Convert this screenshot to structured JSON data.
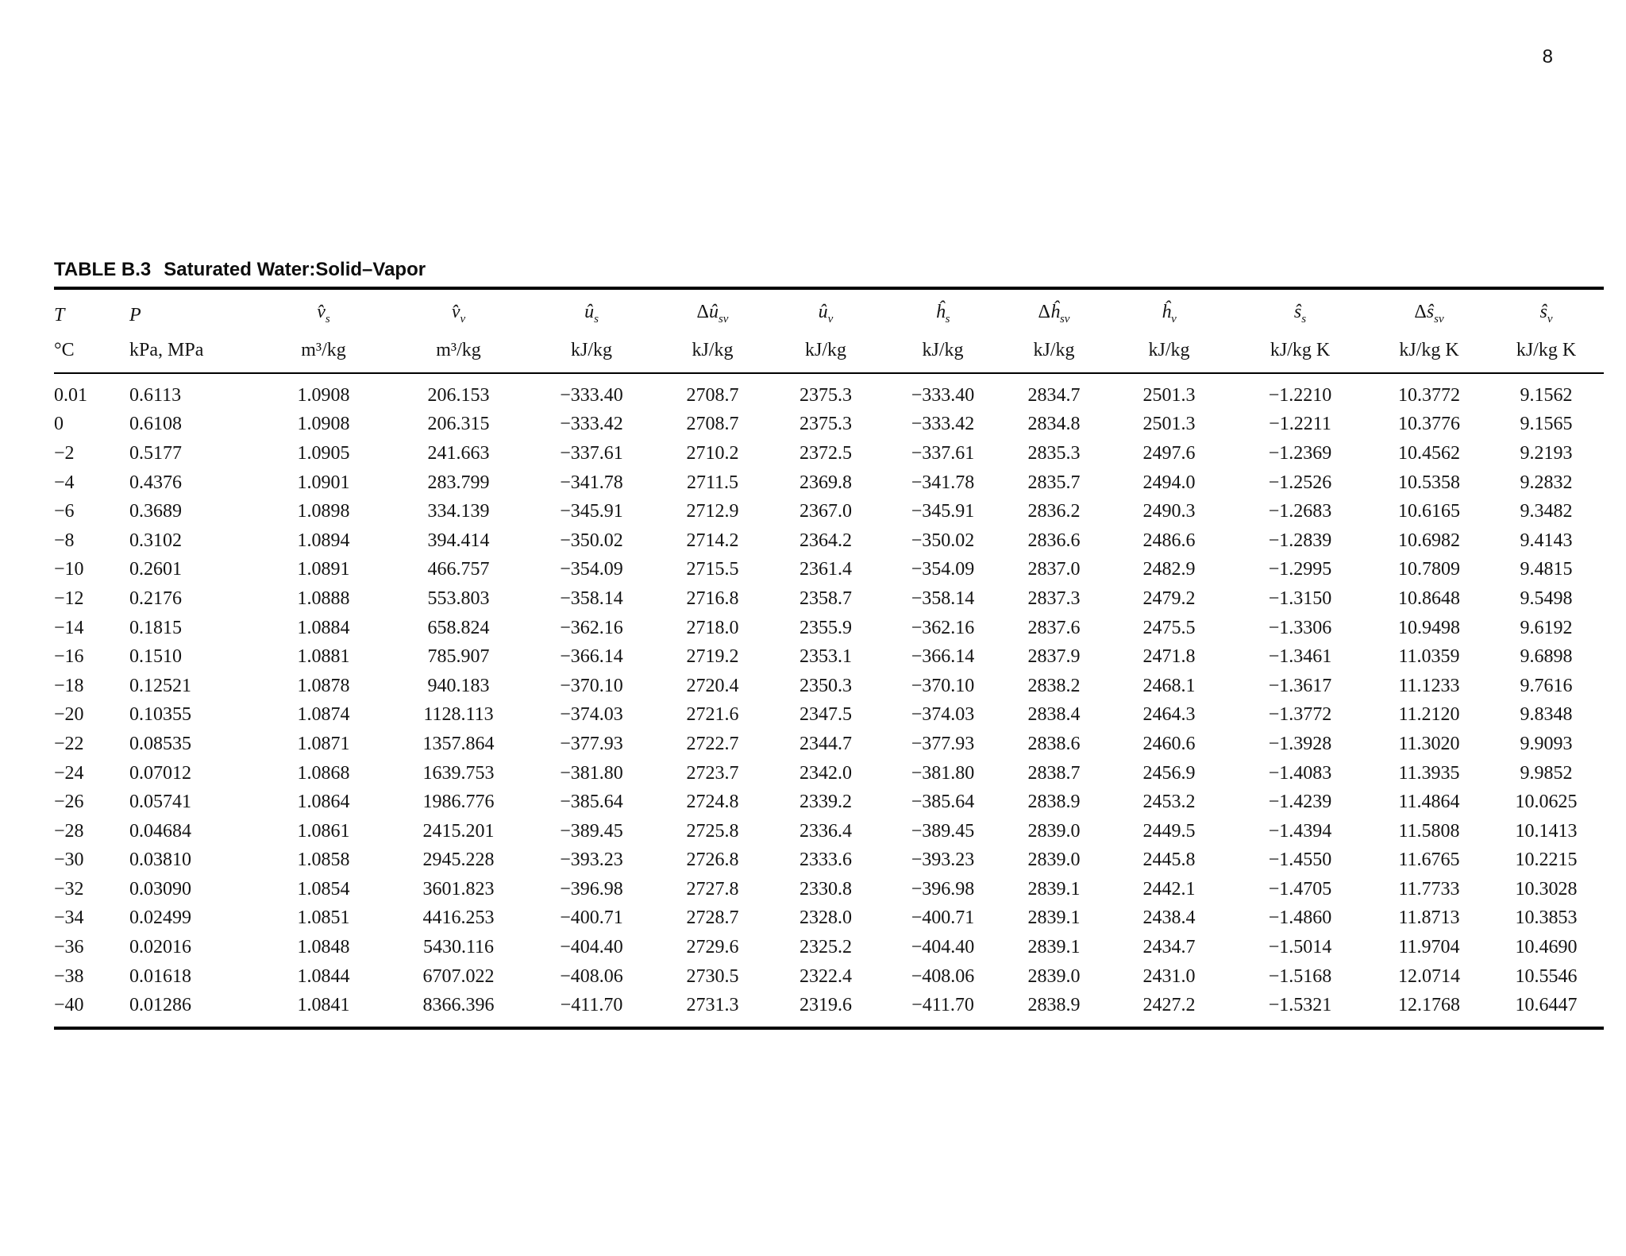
{
  "page": {
    "number": "8"
  },
  "table": {
    "title_label": "TABLE B.3",
    "title_text": "Saturated Water:Solid–Vapor",
    "columns": [
      {
        "id": "T",
        "sym": "T",
        "sub": "",
        "prefix": "",
        "unit": "°C"
      },
      {
        "id": "P",
        "sym": "P",
        "sub": "",
        "prefix": "",
        "unit": "kPa, MPa"
      },
      {
        "id": "vs",
        "sym": "v̂",
        "sub": "s",
        "prefix": "",
        "unit": "m³/kg"
      },
      {
        "id": "vv",
        "sym": "v̂",
        "sub": "v",
        "prefix": "",
        "unit": "m³/kg"
      },
      {
        "id": "us",
        "sym": "û",
        "sub": "s",
        "prefix": "",
        "unit": "kJ/kg"
      },
      {
        "id": "dusv",
        "sym": "û",
        "sub": "sv",
        "prefix": "Δ",
        "unit": "kJ/kg"
      },
      {
        "id": "uv",
        "sym": "û",
        "sub": "v",
        "prefix": "",
        "unit": "kJ/kg"
      },
      {
        "id": "hs",
        "sym": "ĥ",
        "sub": "s",
        "prefix": "",
        "unit": "kJ/kg"
      },
      {
        "id": "dhsv",
        "sym": "ĥ",
        "sub": "sv",
        "prefix": "Δ",
        "unit": "kJ/kg"
      },
      {
        "id": "hv",
        "sym": "ĥ",
        "sub": "v",
        "prefix": "",
        "unit": "kJ/kg"
      },
      {
        "id": "ss",
        "sym": "ŝ",
        "sub": "s",
        "prefix": "",
        "unit": "kJ/kg K"
      },
      {
        "id": "dssv",
        "sym": "ŝ",
        "sub": "sv",
        "prefix": "Δ",
        "unit": "kJ/kg K"
      },
      {
        "id": "sv",
        "sym": "ŝ",
        "sub": "v",
        "prefix": "",
        "unit": "kJ/kg K"
      }
    ],
    "rows": [
      [
        "0.01",
        "0.6113",
        "1.0908",
        "206.153",
        "−333.40",
        "2708.7",
        "2375.3",
        "−333.40",
        "2834.7",
        "2501.3",
        "−1.2210",
        "10.3772",
        "9.1562"
      ],
      [
        "0",
        "0.6108",
        "1.0908",
        "206.315",
        "−333.42",
        "2708.7",
        "2375.3",
        "−333.42",
        "2834.8",
        "2501.3",
        "−1.2211",
        "10.3776",
        "9.1565"
      ],
      [
        "−2",
        "0.5177",
        "1.0905",
        "241.663",
        "−337.61",
        "2710.2",
        "2372.5",
        "−337.61",
        "2835.3",
        "2497.6",
        "−1.2369",
        "10.4562",
        "9.2193"
      ],
      [
        "−4",
        "0.4376",
        "1.0901",
        "283.799",
        "−341.78",
        "2711.5",
        "2369.8",
        "−341.78",
        "2835.7",
        "2494.0",
        "−1.2526",
        "10.5358",
        "9.2832"
      ],
      [
        "−6",
        "0.3689",
        "1.0898",
        "334.139",
        "−345.91",
        "2712.9",
        "2367.0",
        "−345.91",
        "2836.2",
        "2490.3",
        "−1.2683",
        "10.6165",
        "9.3482"
      ],
      [
        "−8",
        "0.3102",
        "1.0894",
        "394.414",
        "−350.02",
        "2714.2",
        "2364.2",
        "−350.02",
        "2836.6",
        "2486.6",
        "−1.2839",
        "10.6982",
        "9.4143"
      ],
      [
        "−10",
        "0.2601",
        "1.0891",
        "466.757",
        "−354.09",
        "2715.5",
        "2361.4",
        "−354.09",
        "2837.0",
        "2482.9",
        "−1.2995",
        "10.7809",
        "9.4815"
      ],
      [
        "−12",
        "0.2176",
        "1.0888",
        "553.803",
        "−358.14",
        "2716.8",
        "2358.7",
        "−358.14",
        "2837.3",
        "2479.2",
        "−1.3150",
        "10.8648",
        "9.5498"
      ],
      [
        "−14",
        "0.1815",
        "1.0884",
        "658.824",
        "−362.16",
        "2718.0",
        "2355.9",
        "−362.16",
        "2837.6",
        "2475.5",
        "−1.3306",
        "10.9498",
        "9.6192"
      ],
      [
        "−16",
        "0.1510",
        "1.0881",
        "785.907",
        "−366.14",
        "2719.2",
        "2353.1",
        "−366.14",
        "2837.9",
        "2471.8",
        "−1.3461",
        "11.0359",
        "9.6898"
      ],
      [
        "−18",
        "0.12521",
        "1.0878",
        "940.183",
        "−370.10",
        "2720.4",
        "2350.3",
        "−370.10",
        "2838.2",
        "2468.1",
        "−1.3617",
        "11.1233",
        "9.7616"
      ],
      [
        "−20",
        "0.10355",
        "1.0874",
        "1128.113",
        "−374.03",
        "2721.6",
        "2347.5",
        "−374.03",
        "2838.4",
        "2464.3",
        "−1.3772",
        "11.2120",
        "9.8348"
      ],
      [
        "−22",
        "0.08535",
        "1.0871",
        "1357.864",
        "−377.93",
        "2722.7",
        "2344.7",
        "−377.93",
        "2838.6",
        "2460.6",
        "−1.3928",
        "11.3020",
        "9.9093"
      ],
      [
        "−24",
        "0.07012",
        "1.0868",
        "1639.753",
        "−381.80",
        "2723.7",
        "2342.0",
        "−381.80",
        "2838.7",
        "2456.9",
        "−1.4083",
        "11.3935",
        "9.9852"
      ],
      [
        "−26",
        "0.05741",
        "1.0864",
        "1986.776",
        "−385.64",
        "2724.8",
        "2339.2",
        "−385.64",
        "2838.9",
        "2453.2",
        "−1.4239",
        "11.4864",
        "10.0625"
      ],
      [
        "−28",
        "0.04684",
        "1.0861",
        "2415.201",
        "−389.45",
        "2725.8",
        "2336.4",
        "−389.45",
        "2839.0",
        "2449.5",
        "−1.4394",
        "11.5808",
        "10.1413"
      ],
      [
        "−30",
        "0.03810",
        "1.0858",
        "2945.228",
        "−393.23",
        "2726.8",
        "2333.6",
        "−393.23",
        "2839.0",
        "2445.8",
        "−1.4550",
        "11.6765",
        "10.2215"
      ],
      [
        "−32",
        "0.03090",
        "1.0854",
        "3601.823",
        "−396.98",
        "2727.8",
        "2330.8",
        "−396.98",
        "2839.1",
        "2442.1",
        "−1.4705",
        "11.7733",
        "10.3028"
      ],
      [
        "−34",
        "0.02499",
        "1.0851",
        "4416.253",
        "−400.71",
        "2728.7",
        "2328.0",
        "−400.71",
        "2839.1",
        "2438.4",
        "−1.4860",
        "11.8713",
        "10.3853"
      ],
      [
        "−36",
        "0.02016",
        "1.0848",
        "5430.116",
        "−404.40",
        "2729.6",
        "2325.2",
        "−404.40",
        "2839.1",
        "2434.7",
        "−1.5014",
        "11.9704",
        "10.4690"
      ],
      [
        "−38",
        "0.01618",
        "1.0844",
        "6707.022",
        "−408.06",
        "2730.5",
        "2322.4",
        "−408.06",
        "2839.0",
        "2431.0",
        "−1.5168",
        "12.0714",
        "10.5546"
      ],
      [
        "−40",
        "0.01286",
        "1.0841",
        "8366.396",
        "−411.70",
        "2731.3",
        "2319.6",
        "−411.70",
        "2838.9",
        "2427.2",
        "−1.5321",
        "12.1768",
        "10.6447"
      ]
    ]
  }
}
